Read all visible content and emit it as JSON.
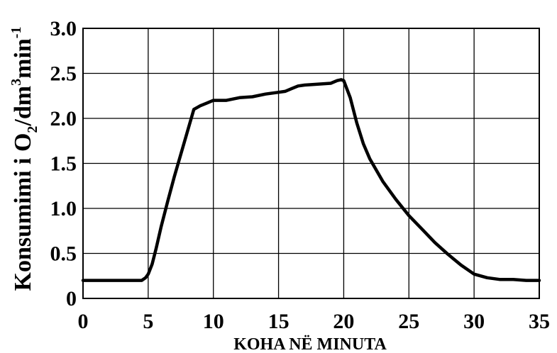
{
  "chart_data": {
    "type": "line",
    "title": "",
    "xlabel": "KOHA NË MINUTA",
    "ylabel": {
      "main": "Konsumimi i O",
      "sub": "2",
      "mid": "/dm",
      "sup1": "3",
      "tail": "min",
      "sup2": "-1"
    },
    "xlim": [
      0,
      35
    ],
    "ylim": [
      0,
      3.0
    ],
    "x_ticks": [
      0,
      5,
      10,
      15,
      20,
      25,
      30,
      35
    ],
    "x_tick_labels": [
      "0",
      "5",
      "10",
      "15",
      "20",
      "25",
      "30",
      "35"
    ],
    "y_ticks": [
      0,
      0.5,
      1.0,
      1.5,
      2.0,
      2.5,
      3.0
    ],
    "y_tick_labels": [
      "0",
      "0.5",
      "1.0",
      "1.5",
      "2.0",
      "2.5",
      "3.0"
    ],
    "grid": true,
    "legend": "none",
    "series": [
      {
        "color": "#000000",
        "x": [
          0,
          2,
          4.5,
          4.8,
          5.0,
          5.3,
          5.6,
          6.0,
          6.5,
          7.0,
          7.5,
          8.0,
          8.5,
          9.0,
          9.5,
          10.0,
          11.0,
          12.0,
          13.0,
          14.0,
          15.0,
          15.5,
          16.0,
          16.5,
          17.0,
          18.0,
          19.0,
          19.5,
          19.8,
          20.0,
          20.5,
          21.0,
          21.5,
          22.0,
          23.0,
          24.0,
          25.0,
          26.0,
          27.0,
          28.0,
          29.0,
          30.0,
          31.0,
          32.0,
          33.0,
          34.0,
          35.0
        ],
        "y": [
          0.2,
          0.2,
          0.2,
          0.23,
          0.27,
          0.38,
          0.55,
          0.8,
          1.08,
          1.35,
          1.6,
          1.85,
          2.1,
          2.14,
          2.17,
          2.2,
          2.2,
          2.23,
          2.24,
          2.27,
          2.29,
          2.3,
          2.33,
          2.36,
          2.37,
          2.38,
          2.39,
          2.42,
          2.43,
          2.42,
          2.23,
          1.95,
          1.72,
          1.55,
          1.3,
          1.1,
          0.92,
          0.77,
          0.62,
          0.49,
          0.37,
          0.27,
          0.23,
          0.21,
          0.21,
          0.2,
          0.2
        ]
      }
    ]
  }
}
